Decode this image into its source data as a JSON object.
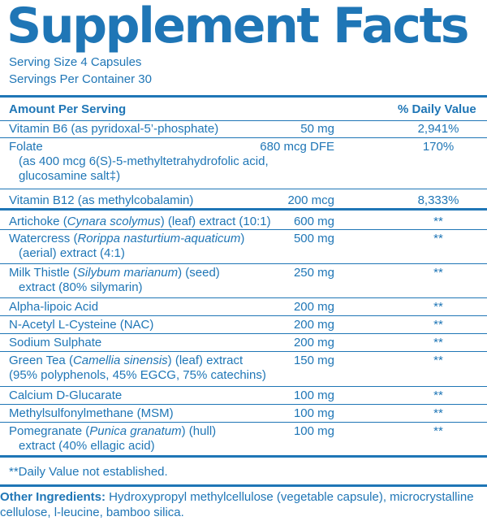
{
  "title": "Supplement Facts",
  "serving_size": "Serving Size 4 Capsules",
  "servings_per_container": "Servings Per Container 30",
  "header": {
    "amount_per_serving": "Amount Per Serving",
    "daily_value": "% Daily Value"
  },
  "vitamins": [
    {
      "lines": [
        "Vitamin B6 (as pyridoxal-5’-phosphate)"
      ],
      "amount": "50 mg",
      "dv": "2,941%"
    },
    {
      "lines": [
        "Folate",
        "(as 400 mcg 6(S)-5-methyltetrahydrofolic acid,",
        "glucosamine salt‡)"
      ],
      "amount": "680 mcg DFE",
      "dv": "170%"
    },
    {
      "lines": [
        "Vitamin B12 (as methylcobalamin)"
      ],
      "amount": "200 mcg",
      "dv": "8,333%"
    }
  ],
  "ingredients": [
    {
      "pre": "Artichoke (",
      "italic": "Cynara scolymus",
      "post": ") (leaf) extract (10:1)",
      "line2": "",
      "amount": "600 mg",
      "dv": "**"
    },
    {
      "pre": "Watercress (",
      "italic": "Rorippa nasturtium-aquaticum",
      "post": ")",
      "line2": "(aerial) extract (4:1)",
      "amount": "500 mg",
      "dv": "**"
    },
    {
      "pre": "Milk Thistle (",
      "italic": "Silybum marianum",
      "post": ") (seed)",
      "line2": "extract (80% silymarin)",
      "amount": "250 mg",
      "dv": "**"
    },
    {
      "pre": "Alpha-lipoic Acid",
      "italic": "",
      "post": "",
      "line2": "",
      "amount": "200 mg",
      "dv": "**"
    },
    {
      "pre": "N-Acetyl L-Cysteine (NAC)",
      "italic": "",
      "post": "",
      "line2": "",
      "amount": "200 mg",
      "dv": "**"
    },
    {
      "pre": "Sodium Sulphate",
      "italic": "",
      "post": "",
      "line2": "",
      "amount": "200 mg",
      "dv": "**"
    },
    {
      "pre": "Green Tea (",
      "italic": "Camellia sinensis",
      "post": ") (leaf) extract",
      "line2": "(95% polyphenols, 45% EGCG, 75% catechins)",
      "amount": "150 mg",
      "dv": "**"
    },
    {
      "pre": "Calcium D-Glucarate",
      "italic": "",
      "post": "",
      "line2": "",
      "amount": "100 mg",
      "dv": "**"
    },
    {
      "pre": "Methylsulfonylmethane (MSM)",
      "italic": "",
      "post": "",
      "line2": "",
      "amount": "100 mg",
      "dv": "**"
    },
    {
      "pre": "Pomegranate (",
      "italic": "Punica granatum",
      "post": ") (hull)",
      "line2": "extract (40% ellagic acid)",
      "amount": "100 mg",
      "dv": "**"
    }
  ],
  "footnote": "**Daily Value not established.",
  "other_ingredients": {
    "label": "Other Ingredients:",
    "text": " Hydroxypropyl methylcellulose (vegetable capsule), microcrystalline cellulose, l-leucine, bamboo silica."
  },
  "colors": {
    "text": "#1f76b6",
    "background": "#ffffff"
  }
}
